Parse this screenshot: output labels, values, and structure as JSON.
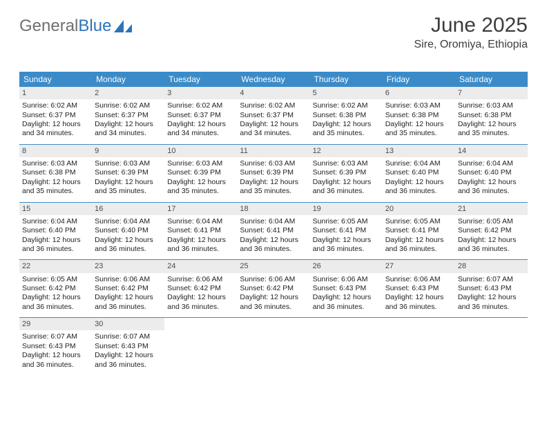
{
  "logo": {
    "part1": "General",
    "part2": "Blue"
  },
  "header": {
    "title": "June 2025",
    "subtitle": "Sire, Oromiya, Ethiopia"
  },
  "day_headers": [
    "Sunday",
    "Monday",
    "Tuesday",
    "Wednesday",
    "Thursday",
    "Friday",
    "Saturday"
  ],
  "colors": {
    "header_bar": "#3b8bc8",
    "daynum_bg": "#ececec",
    "logo_gray": "#6f6f6f",
    "logo_blue": "#2e72b8",
    "text": "#222222",
    "rule": "#3b8bc8"
  },
  "typography": {
    "title_fontsize": 30,
    "subtitle_fontsize": 16,
    "dayhead_fontsize": 12,
    "cell_fontsize": 10.5
  },
  "weeks": [
    [
      {
        "n": "1",
        "sr": "Sunrise: 6:02 AM",
        "ss": "Sunset: 6:37 PM",
        "d1": "Daylight: 12 hours",
        "d2": "and 34 minutes."
      },
      {
        "n": "2",
        "sr": "Sunrise: 6:02 AM",
        "ss": "Sunset: 6:37 PM",
        "d1": "Daylight: 12 hours",
        "d2": "and 34 minutes."
      },
      {
        "n": "3",
        "sr": "Sunrise: 6:02 AM",
        "ss": "Sunset: 6:37 PM",
        "d1": "Daylight: 12 hours",
        "d2": "and 34 minutes."
      },
      {
        "n": "4",
        "sr": "Sunrise: 6:02 AM",
        "ss": "Sunset: 6:37 PM",
        "d1": "Daylight: 12 hours",
        "d2": "and 34 minutes."
      },
      {
        "n": "5",
        "sr": "Sunrise: 6:02 AM",
        "ss": "Sunset: 6:38 PM",
        "d1": "Daylight: 12 hours",
        "d2": "and 35 minutes."
      },
      {
        "n": "6",
        "sr": "Sunrise: 6:03 AM",
        "ss": "Sunset: 6:38 PM",
        "d1": "Daylight: 12 hours",
        "d2": "and 35 minutes."
      },
      {
        "n": "7",
        "sr": "Sunrise: 6:03 AM",
        "ss": "Sunset: 6:38 PM",
        "d1": "Daylight: 12 hours",
        "d2": "and 35 minutes."
      }
    ],
    [
      {
        "n": "8",
        "sr": "Sunrise: 6:03 AM",
        "ss": "Sunset: 6:38 PM",
        "d1": "Daylight: 12 hours",
        "d2": "and 35 minutes."
      },
      {
        "n": "9",
        "sr": "Sunrise: 6:03 AM",
        "ss": "Sunset: 6:39 PM",
        "d1": "Daylight: 12 hours",
        "d2": "and 35 minutes."
      },
      {
        "n": "10",
        "sr": "Sunrise: 6:03 AM",
        "ss": "Sunset: 6:39 PM",
        "d1": "Daylight: 12 hours",
        "d2": "and 35 minutes."
      },
      {
        "n": "11",
        "sr": "Sunrise: 6:03 AM",
        "ss": "Sunset: 6:39 PM",
        "d1": "Daylight: 12 hours",
        "d2": "and 35 minutes."
      },
      {
        "n": "12",
        "sr": "Sunrise: 6:03 AM",
        "ss": "Sunset: 6:39 PM",
        "d1": "Daylight: 12 hours",
        "d2": "and 36 minutes."
      },
      {
        "n": "13",
        "sr": "Sunrise: 6:04 AM",
        "ss": "Sunset: 6:40 PM",
        "d1": "Daylight: 12 hours",
        "d2": "and 36 minutes."
      },
      {
        "n": "14",
        "sr": "Sunrise: 6:04 AM",
        "ss": "Sunset: 6:40 PM",
        "d1": "Daylight: 12 hours",
        "d2": "and 36 minutes."
      }
    ],
    [
      {
        "n": "15",
        "sr": "Sunrise: 6:04 AM",
        "ss": "Sunset: 6:40 PM",
        "d1": "Daylight: 12 hours",
        "d2": "and 36 minutes."
      },
      {
        "n": "16",
        "sr": "Sunrise: 6:04 AM",
        "ss": "Sunset: 6:40 PM",
        "d1": "Daylight: 12 hours",
        "d2": "and 36 minutes."
      },
      {
        "n": "17",
        "sr": "Sunrise: 6:04 AM",
        "ss": "Sunset: 6:41 PM",
        "d1": "Daylight: 12 hours",
        "d2": "and 36 minutes."
      },
      {
        "n": "18",
        "sr": "Sunrise: 6:04 AM",
        "ss": "Sunset: 6:41 PM",
        "d1": "Daylight: 12 hours",
        "d2": "and 36 minutes."
      },
      {
        "n": "19",
        "sr": "Sunrise: 6:05 AM",
        "ss": "Sunset: 6:41 PM",
        "d1": "Daylight: 12 hours",
        "d2": "and 36 minutes."
      },
      {
        "n": "20",
        "sr": "Sunrise: 6:05 AM",
        "ss": "Sunset: 6:41 PM",
        "d1": "Daylight: 12 hours",
        "d2": "and 36 minutes."
      },
      {
        "n": "21",
        "sr": "Sunrise: 6:05 AM",
        "ss": "Sunset: 6:42 PM",
        "d1": "Daylight: 12 hours",
        "d2": "and 36 minutes."
      }
    ],
    [
      {
        "n": "22",
        "sr": "Sunrise: 6:05 AM",
        "ss": "Sunset: 6:42 PM",
        "d1": "Daylight: 12 hours",
        "d2": "and 36 minutes."
      },
      {
        "n": "23",
        "sr": "Sunrise: 6:06 AM",
        "ss": "Sunset: 6:42 PM",
        "d1": "Daylight: 12 hours",
        "d2": "and 36 minutes."
      },
      {
        "n": "24",
        "sr": "Sunrise: 6:06 AM",
        "ss": "Sunset: 6:42 PM",
        "d1": "Daylight: 12 hours",
        "d2": "and 36 minutes."
      },
      {
        "n": "25",
        "sr": "Sunrise: 6:06 AM",
        "ss": "Sunset: 6:42 PM",
        "d1": "Daylight: 12 hours",
        "d2": "and 36 minutes."
      },
      {
        "n": "26",
        "sr": "Sunrise: 6:06 AM",
        "ss": "Sunset: 6:43 PM",
        "d1": "Daylight: 12 hours",
        "d2": "and 36 minutes."
      },
      {
        "n": "27",
        "sr": "Sunrise: 6:06 AM",
        "ss": "Sunset: 6:43 PM",
        "d1": "Daylight: 12 hours",
        "d2": "and 36 minutes."
      },
      {
        "n": "28",
        "sr": "Sunrise: 6:07 AM",
        "ss": "Sunset: 6:43 PM",
        "d1": "Daylight: 12 hours",
        "d2": "and 36 minutes."
      }
    ],
    [
      {
        "n": "29",
        "sr": "Sunrise: 6:07 AM",
        "ss": "Sunset: 6:43 PM",
        "d1": "Daylight: 12 hours",
        "d2": "and 36 minutes."
      },
      {
        "n": "30",
        "sr": "Sunrise: 6:07 AM",
        "ss": "Sunset: 6:43 PM",
        "d1": "Daylight: 12 hours",
        "d2": "and 36 minutes."
      },
      null,
      null,
      null,
      null,
      null
    ]
  ]
}
